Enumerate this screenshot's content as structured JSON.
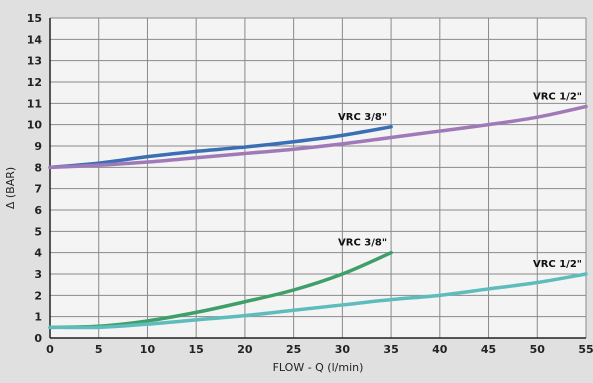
{
  "chart_data": {
    "type": "line",
    "xlabel": "FLOW - Q (l/min)",
    "ylabel": "Δ (BAR)",
    "xlim": [
      0,
      55
    ],
    "ylim": [
      0,
      15
    ],
    "xticks": [
      0,
      5,
      10,
      15,
      20,
      25,
      30,
      35,
      40,
      45,
      50,
      55
    ],
    "yticks": [
      0,
      1,
      2,
      3,
      4,
      5,
      6,
      7,
      8,
      9,
      10,
      11,
      12,
      13,
      14,
      15
    ],
    "grid": true,
    "series": [
      {
        "name": "VRC 3/8\"",
        "color": "#3a6fb5",
        "x": [
          0,
          5,
          10,
          15,
          20,
          25,
          30,
          35
        ],
        "y": [
          8.0,
          8.2,
          8.5,
          8.75,
          8.95,
          9.2,
          9.5,
          9.9
        ]
      },
      {
        "name": "VRC 1/2\"",
        "color": "#a07ab8",
        "x": [
          0,
          5,
          10,
          15,
          20,
          25,
          30,
          35,
          40,
          45,
          50,
          55
        ],
        "y": [
          8.0,
          8.1,
          8.25,
          8.45,
          8.65,
          8.85,
          9.1,
          9.4,
          9.7,
          10.0,
          10.35,
          10.85
        ]
      },
      {
        "name": "VRC 3/8\"",
        "color": "#3f9f6a",
        "x": [
          0,
          5,
          10,
          15,
          20,
          25,
          30,
          35
        ],
        "y": [
          0.5,
          0.55,
          0.8,
          1.2,
          1.7,
          2.25,
          3.0,
          4.0
        ]
      },
      {
        "name": "VRC 1/2\"",
        "color": "#5fbcbc",
        "x": [
          0,
          5,
          10,
          15,
          20,
          25,
          30,
          35,
          40,
          45,
          50,
          55
        ],
        "y": [
          0.5,
          0.5,
          0.65,
          0.85,
          1.05,
          1.3,
          1.55,
          1.8,
          2.0,
          2.3,
          2.6,
          3.0
        ]
      }
    ]
  }
}
